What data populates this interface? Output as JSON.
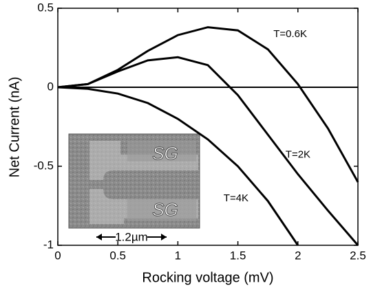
{
  "chart_data": {
    "type": "line",
    "x_label": "Rocking voltage (mV)",
    "y_label": "Net Current (nA)",
    "x": [
      0,
      0.25,
      0.5,
      0.75,
      1,
      1.25,
      1.5,
      1.75,
      2,
      2.25,
      2.5
    ],
    "series": [
      {
        "name": "T=0.6K",
        "color": "#000000",
        "values": [
          0,
          0.02,
          0.11,
          0.23,
          0.33,
          0.38,
          0.36,
          0.24,
          0.02,
          -0.26,
          -0.6
        ]
      },
      {
        "name": "T=2K",
        "color": "#000000",
        "values": [
          0,
          0.02,
          0.1,
          0.17,
          0.19,
          0.14,
          -0.05,
          -0.3,
          -0.55,
          -0.78,
          -1
        ]
      },
      {
        "name": "T=4K",
        "color": "#000000",
        "values": [
          0,
          -0.01,
          -0.04,
          -0.1,
          -0.2,
          -0.33,
          -0.5,
          -0.72,
          -1,
          null,
          null
        ]
      }
    ],
    "xlim": [
      0,
      2.5
    ],
    "ylim": [
      -1,
      0.5
    ],
    "xticks": [
      0,
      0.5,
      1,
      1.5,
      2,
      2.5
    ],
    "yticks": [
      -1,
      -0.5,
      0,
      0.5
    ],
    "hline": 0,
    "inset": {
      "labels": [
        "SG",
        "SG"
      ],
      "scale_label": "1.2µm"
    }
  }
}
